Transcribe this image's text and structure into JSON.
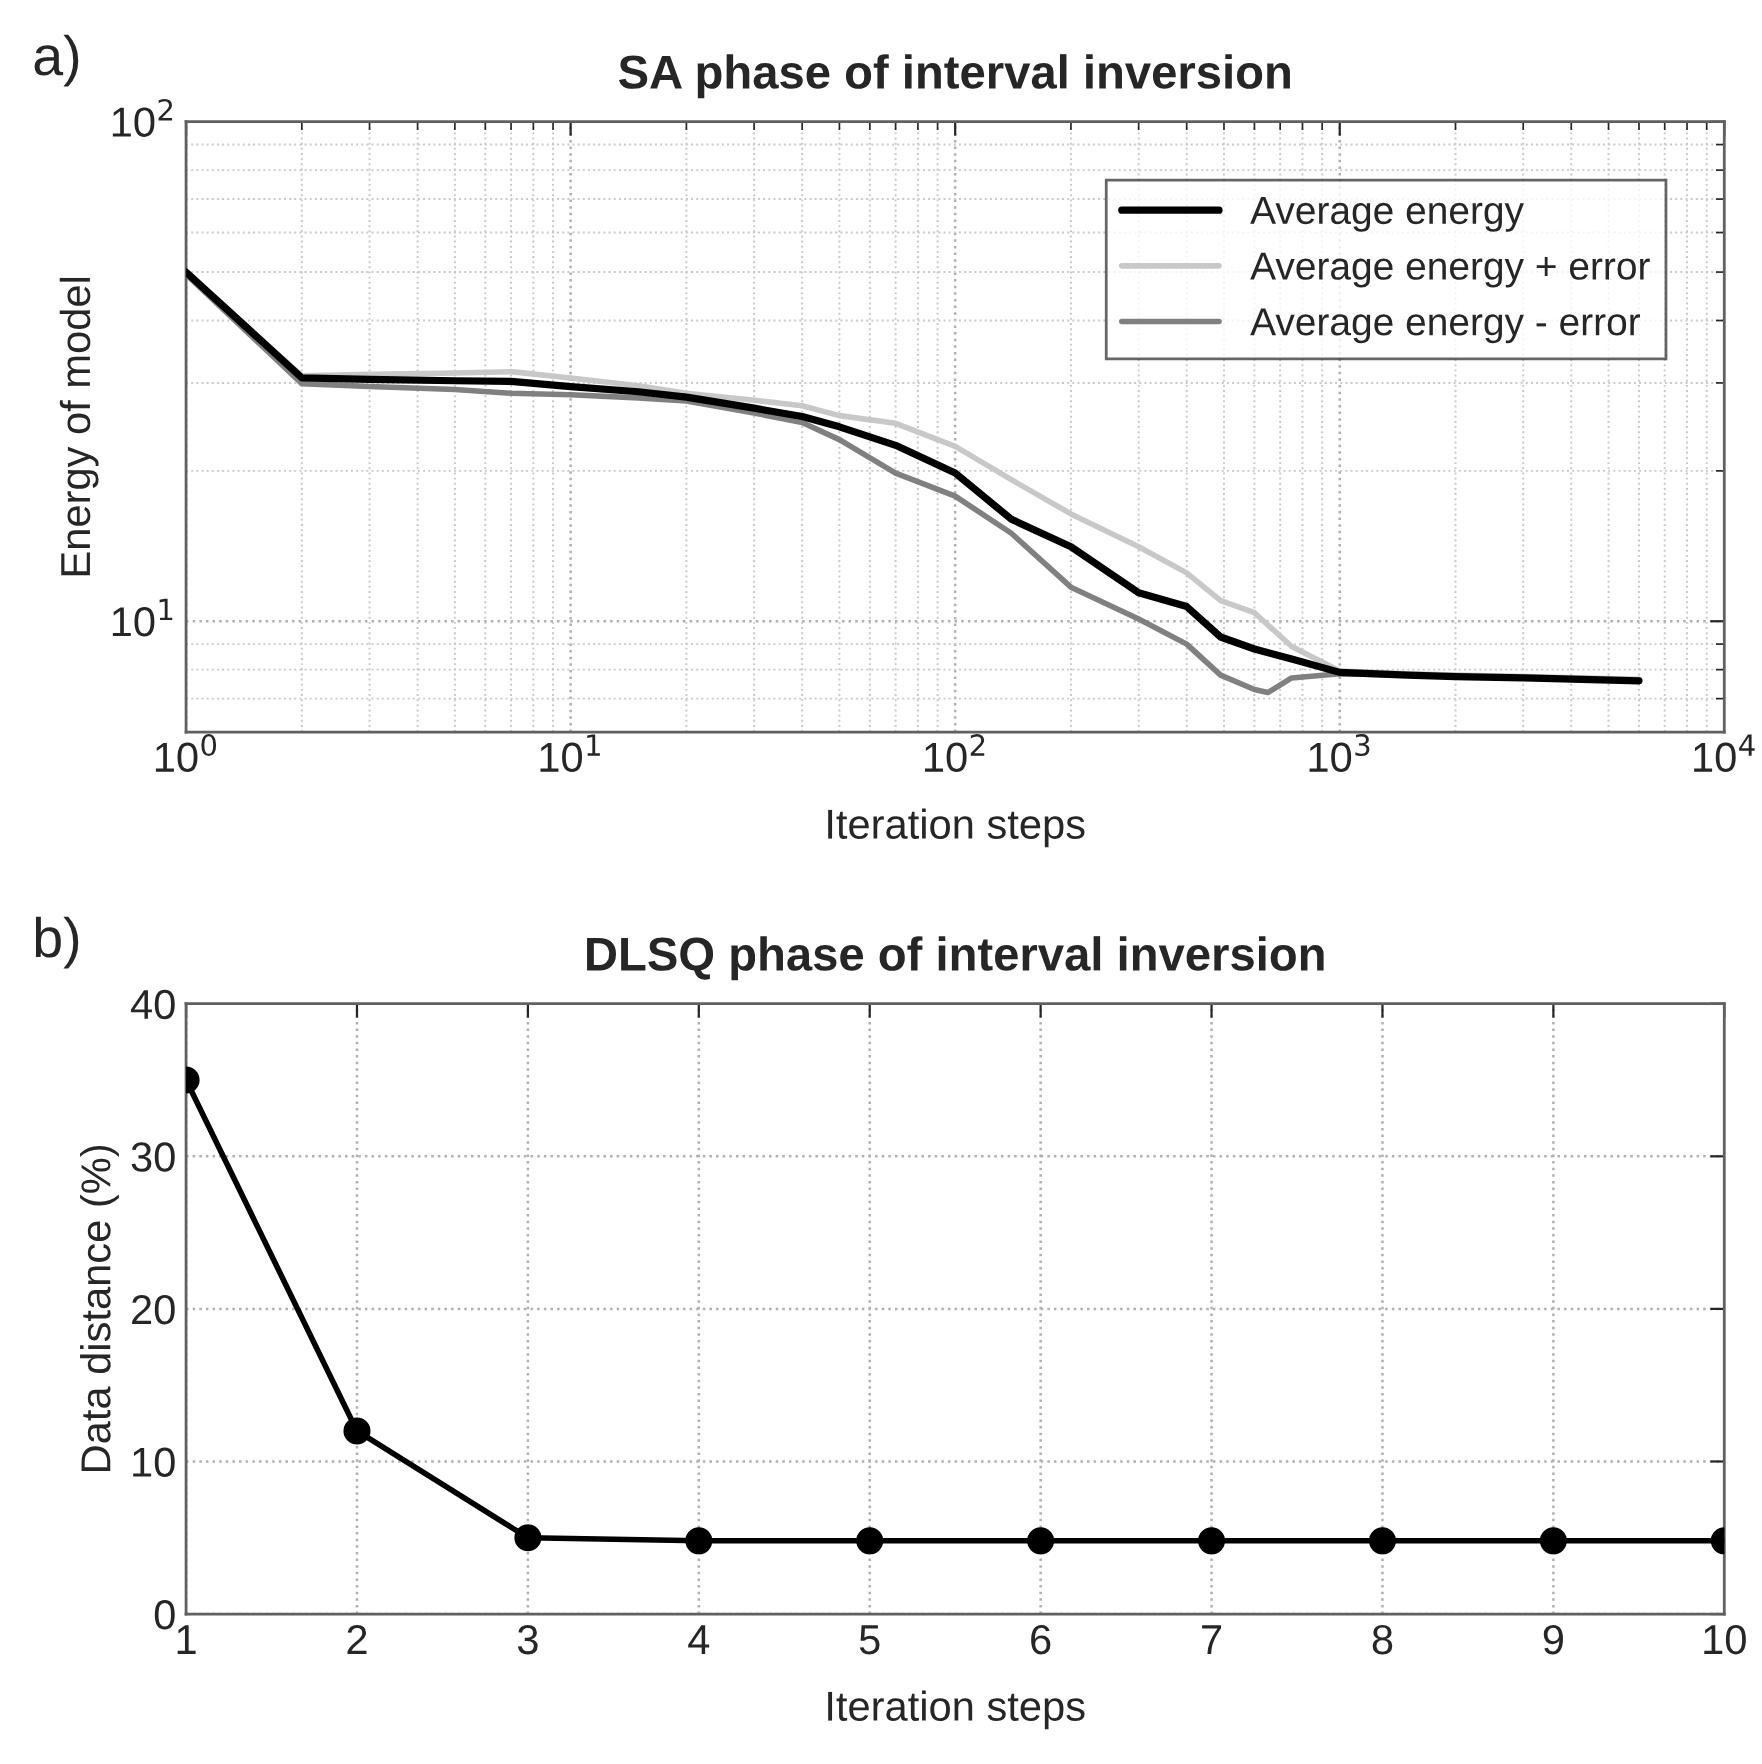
{
  "chart_data": [
    {
      "type": "line",
      "title": "SA phase of interval inversion",
      "xlabel": "Iteration steps",
      "ylabel": "Energy of model",
      "annotations": [
        "a)"
      ],
      "log": "xy",
      "xlim": [
        1,
        10000
      ],
      "ylim": [
        6,
        100
      ],
      "xticks": [
        {
          "value": 1,
          "label": "10$^{0}$"
        },
        {
          "value": 10,
          "label": "10$^{1}$"
        },
        {
          "value": 100,
          "label": "10$^{2}$"
        },
        {
          "value": 1000,
          "label": "10$^{3}$"
        },
        {
          "value": 10000,
          "label": "10$^{4}$"
        }
      ],
      "yticks": [
        {
          "value": 10,
          "label": "10$^{1}$"
        },
        {
          "value": 100,
          "label": "10$^{2}$"
        }
      ],
      "grid": true,
      "legend": "top right",
      "series": [
        {
          "name": "Average energy",
          "color": "#000000",
          "x": [
            1,
            2,
            3,
            5,
            7,
            10,
            15,
            20,
            30,
            40,
            50,
            70,
            100,
            140,
            200,
            300,
            400,
            490,
            600,
            750,
            1000,
            1500,
            2000,
            3000,
            6000
          ],
          "values": [
            50,
            30.7,
            30.5,
            30.3,
            30.2,
            29.5,
            28.8,
            28.1,
            26.7,
            25.7,
            24.5,
            22.5,
            19.8,
            16.0,
            14.1,
            11.4,
            10.7,
            9.3,
            8.8,
            8.4,
            7.9,
            7.8,
            7.75,
            7.7,
            7.6
          ]
        },
        {
          "name": "Average energy + error",
          "color": "#c8c8c8",
          "x": [
            1,
            2,
            3,
            5,
            7,
            10,
            15,
            20,
            30,
            40,
            50,
            70,
            100,
            140,
            200,
            300,
            400,
            490,
            600,
            750,
            1000,
            1500,
            2000,
            3000,
            6000
          ],
          "values": [
            50,
            31,
            31.2,
            31.4,
            31.6,
            30.7,
            29.6,
            28.6,
            27.7,
            27,
            25.8,
            24.9,
            22.4,
            19.2,
            16.4,
            14.1,
            12.5,
            11.0,
            10.4,
            8.9,
            7.95,
            7.85,
            7.8,
            7.75,
            7.65
          ]
        },
        {
          "name": "Average energy - error",
          "color": "#808080",
          "x": [
            1,
            2,
            3,
            5,
            7,
            10,
            15,
            20,
            30,
            40,
            50,
            70,
            100,
            140,
            200,
            300,
            400,
            490,
            600,
            650,
            750,
            1000,
            1500,
            2000,
            3000,
            6000
          ],
          "values": [
            49.5,
            29.9,
            29.5,
            29.1,
            28.6,
            28.4,
            28.0,
            27.6,
            26.1,
            25,
            23.1,
            19.8,
            17.8,
            15.0,
            11.7,
            10.1,
            9.0,
            7.8,
            7.3,
            7.2,
            7.7,
            7.85,
            7.8,
            7.75,
            7.7,
            7.6
          ]
        }
      ]
    },
    {
      "type": "line",
      "title": "DLSQ phase of interval inversion",
      "xlabel": "Iteration steps",
      "ylabel": "Data distance (%)",
      "annotations": [
        "b)"
      ],
      "x": [
        1,
        2,
        3,
        4,
        5,
        6,
        7,
        8,
        9,
        10
      ],
      "xlim": [
        1,
        10
      ],
      "xticks": [
        1,
        2,
        3,
        4,
        5,
        6,
        7,
        8,
        9,
        10
      ],
      "ylim": [
        0,
        40
      ],
      "yticks": [
        0,
        10,
        20,
        30,
        40
      ],
      "grid": true,
      "marker": "circle",
      "series": [
        {
          "color": "#000000",
          "values": [
            35,
            12,
            5,
            4.8,
            4.8,
            4.8,
            4.8,
            4.8,
            4.8,
            4.8
          ]
        }
      ]
    }
  ]
}
